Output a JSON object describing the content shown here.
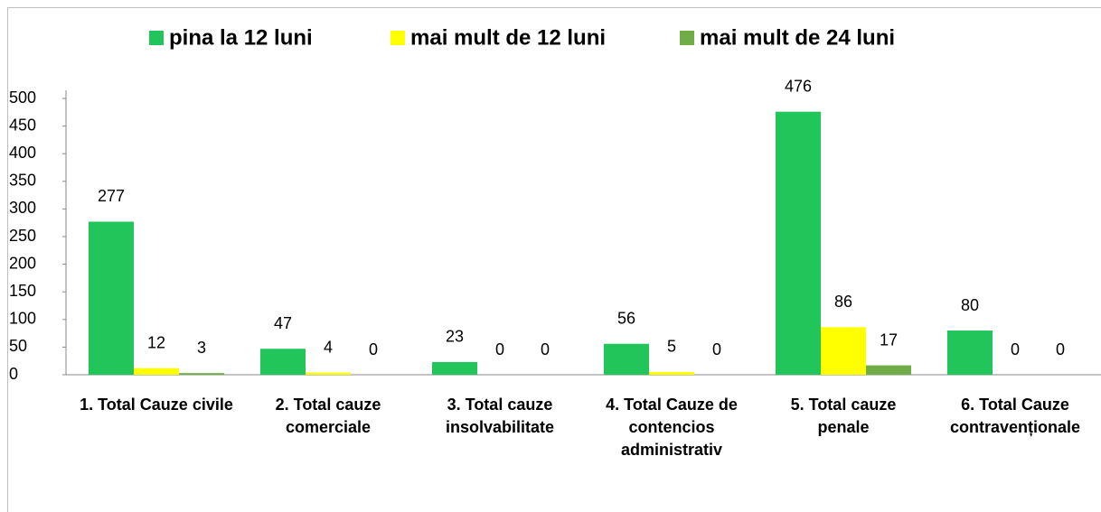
{
  "chart_data": {
    "type": "bar",
    "categories": [
      "1. Total Cauze civile",
      "2. Total cauze comerciale",
      "3. Total cauze insolvabilitate",
      "4. Total Cauze de contencios administrativ",
      "5. Total cauze penale",
      "6. Total Cauze contravenționale"
    ],
    "series": [
      {
        "name": "pina la 12 luni",
        "color": "#22c55a",
        "values": [
          277,
          47,
          23,
          56,
          476,
          80
        ]
      },
      {
        "name": "mai mult de 12 luni",
        "color": "#ffff00",
        "values": [
          12,
          4,
          0,
          5,
          86,
          0
        ]
      },
      {
        "name": "mai mult de 24 luni",
        "color": "#70ad47",
        "values": [
          3,
          0,
          0,
          0,
          17,
          0
        ]
      }
    ],
    "ylim": [
      0,
      500
    ],
    "yticks": [
      0,
      50,
      100,
      150,
      200,
      250,
      300,
      350,
      400,
      450,
      500
    ],
    "grid": false,
    "legend": "top"
  }
}
